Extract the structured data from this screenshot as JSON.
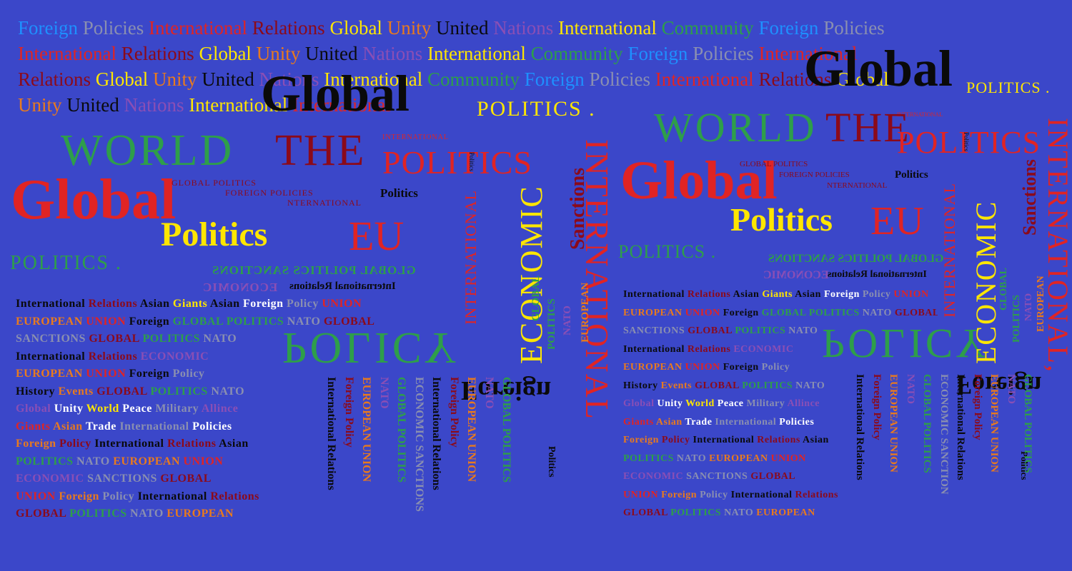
{
  "background": "#3b47c9",
  "header_lines": [
    [
      [
        "Foreign",
        "#1e90ff"
      ],
      [
        "Policies",
        "#8a8fb0"
      ],
      [
        "International",
        "#e02424"
      ],
      [
        "Relations",
        "#8b0a1a"
      ],
      [
        "Global",
        "#ffe600"
      ],
      [
        "Unity",
        "#e87a1e"
      ],
      [
        "United",
        "#0a0a0a"
      ],
      [
        "Nations",
        "#8a4fb5"
      ],
      [
        "International",
        "#ffe600"
      ],
      [
        "Community",
        "#2e9e4a"
      ],
      [
        "Foreign",
        "#1e90ff"
      ],
      [
        "Policies",
        "#8a8fb0"
      ]
    ],
    [
      [
        "International",
        "#e02424"
      ],
      [
        "Relations",
        "#8b0a1a"
      ],
      [
        "Global",
        "#ffe600"
      ],
      [
        "Unity",
        "#e87a1e"
      ],
      [
        "United",
        "#0a0a0a"
      ],
      [
        "Nations",
        "#8a4fb5"
      ],
      [
        "International",
        "#ffe600"
      ],
      [
        "Community",
        "#2e9e4a"
      ],
      [
        "Foreign",
        "#1e90ff"
      ],
      [
        "Policies",
        "#8a8fb0"
      ],
      [
        "International",
        "#e02424"
      ]
    ],
    [
      [
        "Relations",
        "#8b0a1a"
      ],
      [
        "Global",
        "#ffe600"
      ],
      [
        "Unity",
        "#e87a1e"
      ],
      [
        "United",
        "#0a0a0a"
      ],
      [
        "Nations",
        "#8a4fb5"
      ],
      [
        "International",
        "#ffe600"
      ],
      [
        "Community",
        "#2e9e4a"
      ],
      [
        "Foreign",
        "#1e90ff"
      ],
      [
        "Policies",
        "#8a8fb0"
      ],
      [
        "International",
        "#e02424"
      ],
      [
        "Relations",
        "#8b0a1a"
      ],
      [
        "Global",
        "#ffe600"
      ]
    ],
    [
      [
        "Unity",
        "#e87a1e"
      ],
      [
        "United",
        "#0a0a0a"
      ],
      [
        "Nations",
        "#8a4fb5"
      ],
      [
        "International",
        "#ffe600"
      ],
      [
        "International",
        "#e02424"
      ]
    ]
  ],
  "words": {
    "global_big_1": "Global",
    "global_big_2": "Global",
    "global_red_1": "Global",
    "global_red_2": "Global",
    "world_1": "WORLD",
    "world_2": "WORLD",
    "the_1": "THE",
    "the_2": "THE",
    "politics_1": "POLITICS",
    "politics_2": "POLITICS",
    "politics_cap_1": "POLITICS .",
    "politics_cap_2": "POLITICS .",
    "politics_cap_3": "POLITICS .",
    "politics_cap_4": "POLITICS .",
    "politics_y_1": "Politics",
    "politics_y_2": "Politics",
    "politics_s_1": "Politics",
    "politics_s_2": "Politics",
    "politics_s_3": "Politics",
    "politics_s_4": "Politics",
    "politics_tiny_1": "Politics",
    "politics_tiny_2": "Politics",
    "eu_1": "EU",
    "eu_2": "EU",
    "global_politics_1": "GLOBAL POLITICS",
    "global_politics_2": "GLOBAL POLITICS",
    "foreign_policies_1": "FOREIGN POLICIES",
    "foreign_policies_2": "FOREIGN POLICIES",
    "international_small_1": "NTERNATIONAL",
    "international_small_2": "NTERNATIONAL",
    "international_tiny_1": "INTERNATIONAL",
    "international_tiny_2": "INTERNATIONAL",
    "international_vert_1": "INTERNATIONAL",
    "international_vert_2": "INTERNATIONAL",
    "international_vert_3": "INTERNATIONAL",
    "international_vert_4": "INTERNATIONAL,",
    "economic_vert_1": "ECONOMIC",
    "economic_vert_2": "ECONOMIC",
    "sanctions_1": "Sanctions",
    "sanctions_2": "Sanctions",
    "policy_1": "POLICY",
    "policy_2": "POLICY",
    "foreign_1": "Foreign",
    "foreign_2": "Foreign",
    "global_v_1": "GLOBAL",
    "global_v_2": "GLOBAL",
    "politics_v_1": "POLITICS",
    "politics_v_2": "POLITICS",
    "nato_v_1": "NATO",
    "nato_v_2": "NATO",
    "european_v_1": "EUROPEAN",
    "european_v_2": "EUROPEAN",
    "mirror_1": "GLOBAL POLITICS SANCTIONS",
    "mirror_2": "ECONOMIC",
    "mirror_3": "International Relations",
    "mirror_4": "GLOBAL POLITICS SANCTIONS",
    "mirror_5": "ECONOMIC",
    "mirror_6": "International Relations"
  },
  "block_lines": [
    [
      [
        "International ",
        "#0a0a0a"
      ],
      [
        "Relations ",
        "#8b0a1a"
      ],
      [
        "Asian ",
        "#0a0a0a"
      ],
      [
        "Giants ",
        "#ffe600"
      ],
      [
        "Asian ",
        "#0a0a0a"
      ],
      [
        "Foreign ",
        "#ffffff"
      ],
      [
        "Policy ",
        "#8a8fb0"
      ],
      [
        "UNION",
        "#e02424"
      ]
    ],
    [
      [
        "EUROPEAN ",
        "#e87a1e"
      ],
      [
        "UNION ",
        "#e02424"
      ],
      [
        "Foreign ",
        "#0a0a0a"
      ],
      [
        "GLOBAL POLITICS ",
        "#2e9e4a"
      ],
      [
        "NATO ",
        "#8a8fb0"
      ],
      [
        "GLOBAL",
        "#8b0a1a"
      ]
    ],
    [
      [
        "SANCTIONS ",
        "#8a8fb0"
      ],
      [
        "GLOBAL ",
        "#8b0a1a"
      ],
      [
        "POLITICS ",
        "#2e9e4a"
      ],
      [
        "NATO",
        "#8a8fb0"
      ]
    ],
    [
      [
        "International ",
        "#0a0a0a"
      ],
      [
        "Relations ",
        "#8b0a1a"
      ],
      [
        "ECONOMIC",
        "#8a4fb5"
      ]
    ],
    [
      [
        "EUROPEAN ",
        "#e87a1e"
      ],
      [
        "UNION ",
        "#e02424"
      ],
      [
        "Foreign ",
        "#0a0a0a"
      ],
      [
        "Policy",
        "#8a8fb0"
      ]
    ],
    [
      [
        "History ",
        "#0a0a0a"
      ],
      [
        "Events ",
        "#e87a1e"
      ],
      [
        "GLOBAL ",
        "#8b0a1a"
      ],
      [
        "POLITICS ",
        "#2e9e4a"
      ],
      [
        "NATO",
        "#8a8fb0"
      ]
    ],
    [
      [
        "Global ",
        "#8a4fb5"
      ],
      [
        "Unity ",
        "#ffffff"
      ],
      [
        "World ",
        "#ffe600"
      ],
      [
        "Peace ",
        "#ffffff"
      ],
      [
        "Military ",
        "#8a8fb0"
      ],
      [
        "Allince",
        "#8a4fb5"
      ]
    ],
    [
      [
        "Giants ",
        "#e02424"
      ],
      [
        "Asian ",
        "#e87a1e"
      ],
      [
        "Trade ",
        "#ffffff"
      ],
      [
        "International ",
        "#8a8fb0"
      ],
      [
        "Policies",
        "#ffffff"
      ]
    ],
    [
      [
        "Foreign ",
        "#e87a1e"
      ],
      [
        "Policy ",
        "#8b0a1a"
      ],
      [
        "International ",
        "#0a0a0a"
      ],
      [
        "Relations ",
        "#8b0a1a"
      ],
      [
        "Asian",
        "#0a0a0a"
      ]
    ],
    [
      [
        "POLITICS ",
        "#2e9e4a"
      ],
      [
        "NATO ",
        "#8a8fb0"
      ],
      [
        "EUROPEAN ",
        "#e87a1e"
      ],
      [
        "UNION",
        "#e02424"
      ]
    ],
    [
      [
        "ECONOMIC ",
        "#8a4fb5"
      ],
      [
        "SANCTIONS ",
        "#8a8fb0"
      ],
      [
        "GLOBAL",
        "#8b0a1a"
      ]
    ],
    [
      [
        "UNION ",
        "#e02424"
      ],
      [
        "Foreign ",
        "#e87a1e"
      ],
      [
        "Policy ",
        "#8a8fb0"
      ],
      [
        "International ",
        "#0a0a0a"
      ],
      [
        "Relations",
        "#8b0a1a"
      ]
    ],
    [
      [
        "GLOBAL ",
        "#8b0a1a"
      ],
      [
        "POLITICS ",
        "#2e9e4a"
      ],
      [
        "NATO ",
        "#8a8fb0"
      ],
      [
        "EUROPEAN",
        "#e87a1e"
      ]
    ]
  ],
  "vertical_cols": [
    [
      [
        "International Relations",
        "#0a0a0a"
      ],
      [
        "Foreign Policy",
        "#8b0a1a"
      ],
      [
        "EUROPEAN UNION",
        "#e87a1e"
      ],
      [
        "NATO",
        "#8a4fb5"
      ],
      [
        "GLOBAL POLITICS",
        "#2e9e4a"
      ],
      [
        "ECONOMIC SANCTIONS",
        "#8a8fb0"
      ],
      [
        "International Relations",
        "#0a0a0a"
      ],
      [
        "Foreign Policy",
        "#8b0a1a"
      ],
      [
        "EUROPEAN UNION",
        "#e87a1e"
      ],
      [
        "NATO",
        "#8a4fb5"
      ],
      [
        "GLOBAL POLITICS",
        "#2e9e4a"
      ]
    ],
    [
      [
        "International Relations",
        "#0a0a0a"
      ],
      [
        "Foreign Policy",
        "#8b0a1a"
      ],
      [
        "EUROPEAN UNION",
        "#e87a1e"
      ],
      [
        "NATO",
        "#8a4fb5"
      ],
      [
        "GLOBAL POLITICS",
        "#2e9e4a"
      ],
      [
        "ECONOMIC SANCTION",
        "#8a8fb0"
      ],
      [
        "International Relations",
        "#0a0a0a"
      ],
      [
        "Foreign Policy",
        "#8b0a1a"
      ],
      [
        "EUROPEAN UNION",
        "#e87a1e"
      ],
      [
        "NATO",
        "#8a4fb5"
      ],
      [
        "GLOBAL POLITICS",
        "#2e9e4a"
      ]
    ]
  ]
}
